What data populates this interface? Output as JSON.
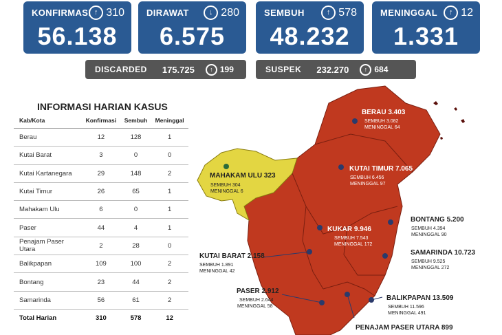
{
  "summary": [
    {
      "label": "KONFIRMASI",
      "delta": "310",
      "direction": "up",
      "value": "56.138"
    },
    {
      "label": "DIRAWAT",
      "delta": "280",
      "direction": "down",
      "value": "6.575"
    },
    {
      "label": "SEMBUH",
      "delta": "578",
      "direction": "up",
      "value": "48.232"
    },
    {
      "label": "MENINGGAL",
      "delta": "12",
      "direction": "up",
      "value": "1.331"
    }
  ],
  "secondary": [
    {
      "label": "DISCARDED",
      "value": "175.725",
      "delta": "199"
    },
    {
      "label": "SUSPEK",
      "value": "232.270",
      "delta": "684"
    }
  ],
  "table": {
    "title": "INFORMASI HARIAN KASUS",
    "headers": [
      "Kab/Kota",
      "Konfirmasi",
      "Sembuh",
      "Meninggal"
    ],
    "rows": [
      [
        "Berau",
        "12",
        "128",
        "1"
      ],
      [
        "Kutai Barat",
        "3",
        "0",
        "0"
      ],
      [
        "Kutai Kartanegara",
        "29",
        "148",
        "2"
      ],
      [
        "Kutai Timur",
        "26",
        "65",
        "1"
      ],
      [
        "Mahakam Ulu",
        "6",
        "0",
        "1"
      ],
      [
        "Paser",
        "44",
        "4",
        "1"
      ],
      [
        "Penajam Paser Utara",
        "2",
        "28",
        "0"
      ],
      [
        "Balikpapan",
        "109",
        "100",
        "2"
      ],
      [
        "Bontang",
        "23",
        "44",
        "2"
      ],
      [
        "Samarinda",
        "56",
        "61",
        "2"
      ]
    ],
    "total": [
      "Total Harian",
      "310",
      "578",
      "12"
    ]
  },
  "map": {
    "colors": {
      "red_zone": "#c0391f",
      "yellow_zone": "#e3d642",
      "marker": "#2b3a6b"
    },
    "regions": [
      {
        "name": "BERAU",
        "total": "3.403",
        "sembuh": "SEMBUH 3.082",
        "meninggal": "MENINGGAL 64"
      },
      {
        "name": "MAHAKAM ULU",
        "total": "323",
        "sembuh": "SEMBUH 304",
        "meninggal": "MENINGGAL 6"
      },
      {
        "name": "KUTAI TIMUR",
        "total": "7.065",
        "sembuh": "SEMBUH 6.456",
        "meninggal": "MENINGGAL 97"
      },
      {
        "name": "BONTANG",
        "total": "5.200",
        "sembuh": "SEMBUH 4.394",
        "meninggal": "MENINGGAL 90"
      },
      {
        "name": "KUKAR",
        "total": "9.946",
        "sembuh": "SEMBUH 7.543",
        "meninggal": "MENINGGAL 172"
      },
      {
        "name": "KUTAI BARAT",
        "total": "2.158",
        "sembuh": "SEMBUH 1.891",
        "meninggal": "MENINGGAL 42"
      },
      {
        "name": "SAMARINDA",
        "total": "10.723",
        "sembuh": "SEMBUH 9.525",
        "meninggal": "MENINGGAL 272"
      },
      {
        "name": "PASER",
        "total": "2.912",
        "sembuh": "SEMBUH 2.644",
        "meninggal": "MENINGGAL 58"
      },
      {
        "name": "BALIKPAPAN",
        "total": "13.509",
        "sembuh": "SEMBUH 11.596",
        "meninggal": "MENINGGAL 491"
      },
      {
        "name": "PENAJAM PASER UTARA",
        "total": "899"
      }
    ]
  }
}
